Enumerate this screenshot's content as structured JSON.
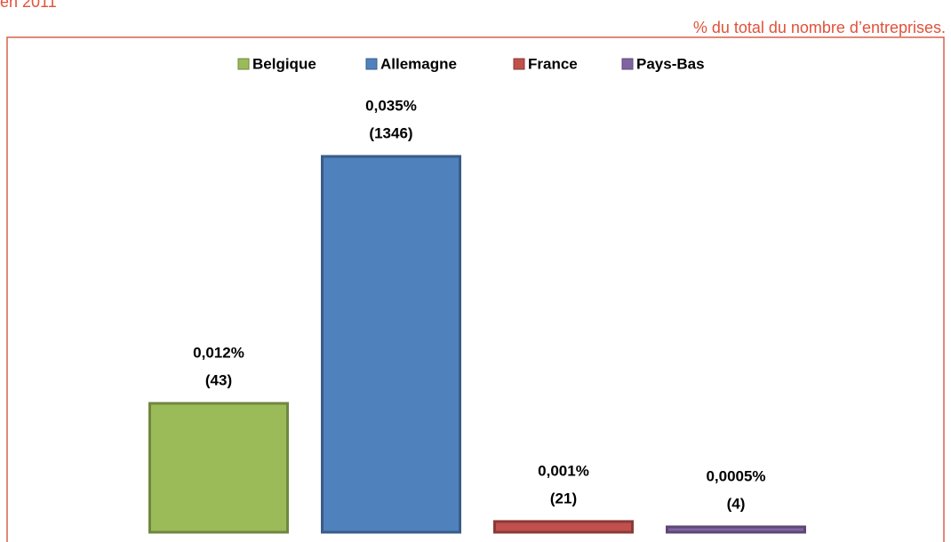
{
  "chart_data": {
    "type": "bar",
    "subtitle": "en 2011",
    "note": "% du total du nombre d’entreprises.",
    "series": [
      {
        "name": "Belgique",
        "color": "#9bbb59",
        "values": [
          0.012
        ],
        "value_labels": [
          "0,012%"
        ],
        "counts": [
          43
        ],
        "count_labels": [
          "(43)"
        ]
      },
      {
        "name": "Allemagne",
        "color": "#4f81bd",
        "values": [
          0.035
        ],
        "value_labels": [
          "0,035%"
        ],
        "counts": [
          1346
        ],
        "count_labels": [
          "(1346)"
        ]
      },
      {
        "name": "France",
        "color": "#c0504d",
        "values": [
          0.001
        ],
        "value_labels": [
          "0,001%"
        ],
        "counts": [
          21
        ],
        "count_labels": [
          "(21)"
        ]
      },
      {
        "name": "Pays-Bas",
        "color": "#8064a2",
        "values": [
          0.0005
        ],
        "value_labels": [
          "0,0005%"
        ],
        "counts": [
          4
        ],
        "count_labels": [
          "(4)"
        ]
      }
    ],
    "legend": "top"
  }
}
